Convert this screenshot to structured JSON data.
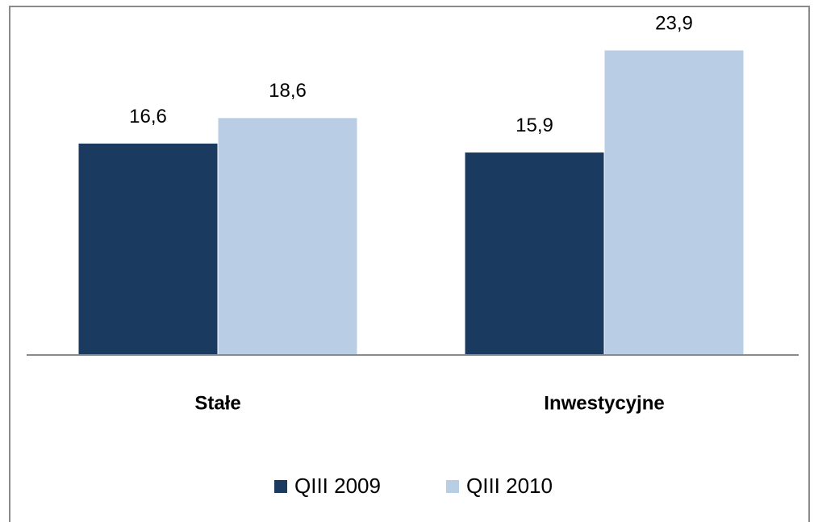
{
  "chart_data": {
    "type": "bar",
    "categories": [
      "Stałe",
      "Inwestycyjne"
    ],
    "series": [
      {
        "name": "QIII 2009",
        "color": "#1b3a60",
        "values": [
          16.6,
          15.9
        ],
        "value_labels": [
          "16,6",
          "15,9"
        ]
      },
      {
        "name": "QIII 2010",
        "color": "#b9cde5",
        "values": [
          18.6,
          23.9
        ],
        "value_labels": [
          "18,6",
          "23,9"
        ]
      }
    ]
  }
}
